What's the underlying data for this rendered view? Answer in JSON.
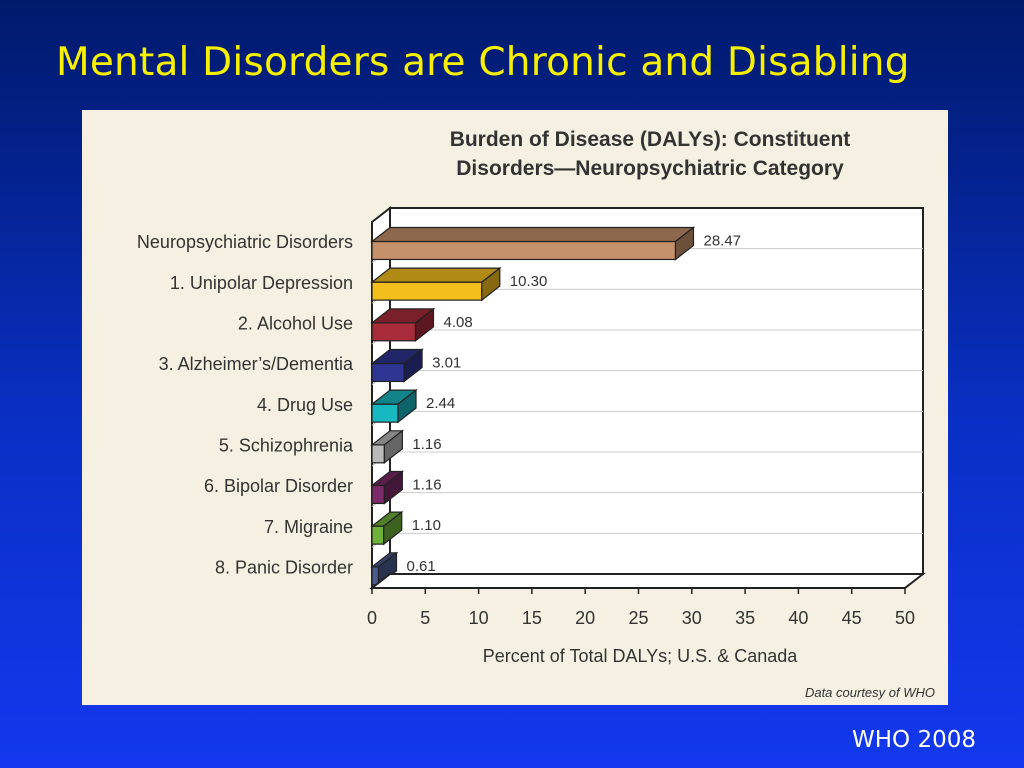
{
  "slide": {
    "title": "Mental Disorders are Chronic and Disabling",
    "footer": "WHO 2008"
  },
  "chart_data": {
    "type": "bar",
    "orientation": "horizontal",
    "style": "3d",
    "title_lines": [
      "Burden of Disease (DALYs): Constituent",
      "Disorders—Neuropsychiatric Category"
    ],
    "xlabel": "Percent of Total DALYs; U.S. & Canada",
    "ylabel": "",
    "xlim": [
      0,
      50
    ],
    "xticks": [
      0,
      5,
      10,
      15,
      20,
      25,
      30,
      35,
      40,
      45,
      50
    ],
    "grid": "horizontal",
    "categories": [
      "Neuropsychiatric Disorders",
      "1. Unipolar Depression",
      "2. Alcohol Use",
      "3. Alzheimer’s/Dementia",
      "4. Drug Use",
      "5. Schizophrenia",
      "6. Bipolar Disorder",
      "7. Migraine",
      "8. Panic Disorder"
    ],
    "values": [
      28.47,
      10.3,
      4.08,
      3.01,
      2.44,
      1.16,
      1.16,
      1.1,
      0.61
    ],
    "value_labels": [
      "28.47",
      "10.30",
      "4.08",
      "3.01",
      "2.44",
      "1.16",
      "1.16",
      "1.10",
      "0.61"
    ],
    "colors": [
      "#c4916a",
      "#f4bf1c",
      "#a82c3a",
      "#2e3592",
      "#18b8c0",
      "#b9b9b9",
      "#7c2a6a",
      "#6fb23a",
      "#4b5a8f"
    ],
    "source_note": "Data courtesy of WHO",
    "background_color": "#f5f0e2"
  }
}
